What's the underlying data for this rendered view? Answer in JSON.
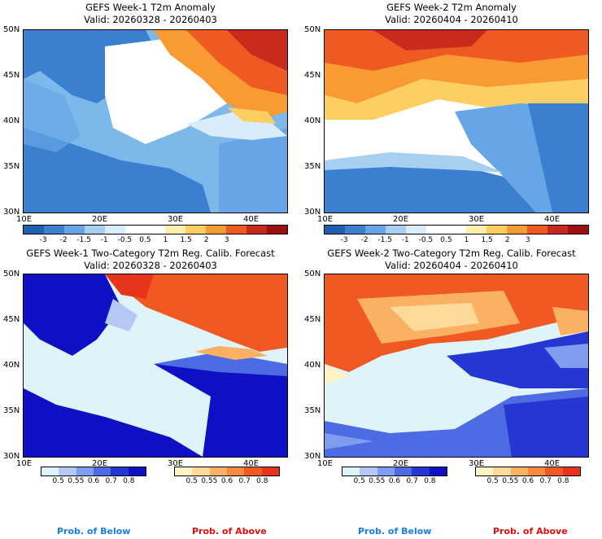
{
  "panels": [
    {
      "title": "GEFS Week-1 T2m Anomaly",
      "valid": "Valid: 20260328 - 20260403"
    },
    {
      "title": "GEFS Week-2 T2m Anomaly",
      "valid": "Valid: 20260404 - 20260410"
    },
    {
      "title": "GEFS Week-1 Two-Category T2m Reg. Calib. Forecast",
      "valid": "Valid: 20260328 - 20260403"
    },
    {
      "title": "GEFS Week-2 Two-Category T2m Reg. Calib. Forecast",
      "valid": "Valid: 20260404 - 20260410"
    }
  ],
  "axes": {
    "lat_labels": [
      "50N",
      "45N",
      "40N",
      "35N",
      "30N"
    ],
    "lon_labels": [
      "10E",
      "20E",
      "30E",
      "40E"
    ]
  },
  "anomaly_colorbar": {
    "ticks": [
      "-3",
      "-2",
      "-1.5",
      "-1",
      "-0.5",
      "0.5",
      "1",
      "1.5",
      "2",
      "3"
    ],
    "colors": [
      "#1e5fb4",
      "#3a7fd0",
      "#66a6e6",
      "#a6cff2",
      "#d9ecfa",
      "#ffffff",
      "#ffffff",
      "#fcedb0",
      "#fdcf62",
      "#f99a32",
      "#ef5a22",
      "#c82a1e",
      "#9e1010"
    ]
  },
  "prob_below_colorbar": {
    "ticks": [
      "0.5",
      "0.55",
      "0.6",
      "0.7",
      "0.8"
    ],
    "colors": [
      "#dff3fb",
      "#b5c8f5",
      "#7f9cef",
      "#4d6be2",
      "#2437d3",
      "#0f10c6"
    ]
  },
  "prob_above_colorbar": {
    "ticks": [
      "0.5",
      "0.55",
      "0.6",
      "0.7",
      "0.8"
    ],
    "colors": [
      "#fdf3c4",
      "#fdd99a",
      "#fbb164",
      "#f78a3e",
      "#f05a22",
      "#e6351a"
    ]
  },
  "legend": {
    "below_label": "Prob. of Below",
    "above_label": "Prob. of Above",
    "below_color": "#1a7fe0",
    "above_color": "#e01010"
  }
}
